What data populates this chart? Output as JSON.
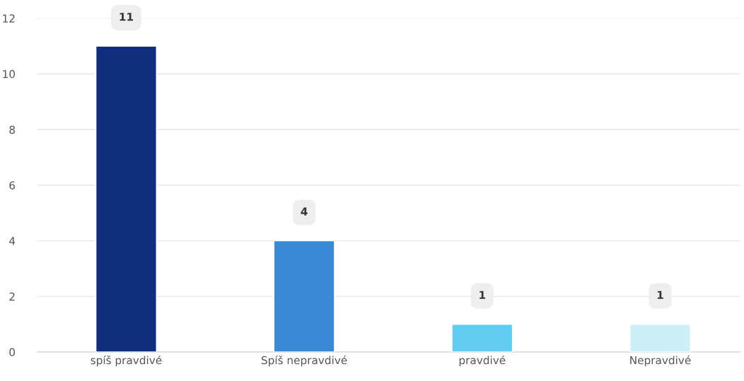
{
  "chart_data": {
    "type": "bar",
    "categories": [
      "spíš pravdivé",
      "Spíš nepravdivé",
      "pravdivé",
      "Nepravdivé"
    ],
    "values": [
      11,
      4,
      1,
      1
    ],
    "colors": [
      "#112e7d",
      "#3a8ad8",
      "#63cdf0",
      "#cdf0f7"
    ],
    "ylim": [
      0,
      12
    ],
    "yticks": [
      0,
      2,
      4,
      6,
      8,
      10,
      12
    ],
    "grid": "y",
    "data_labels": true
  }
}
